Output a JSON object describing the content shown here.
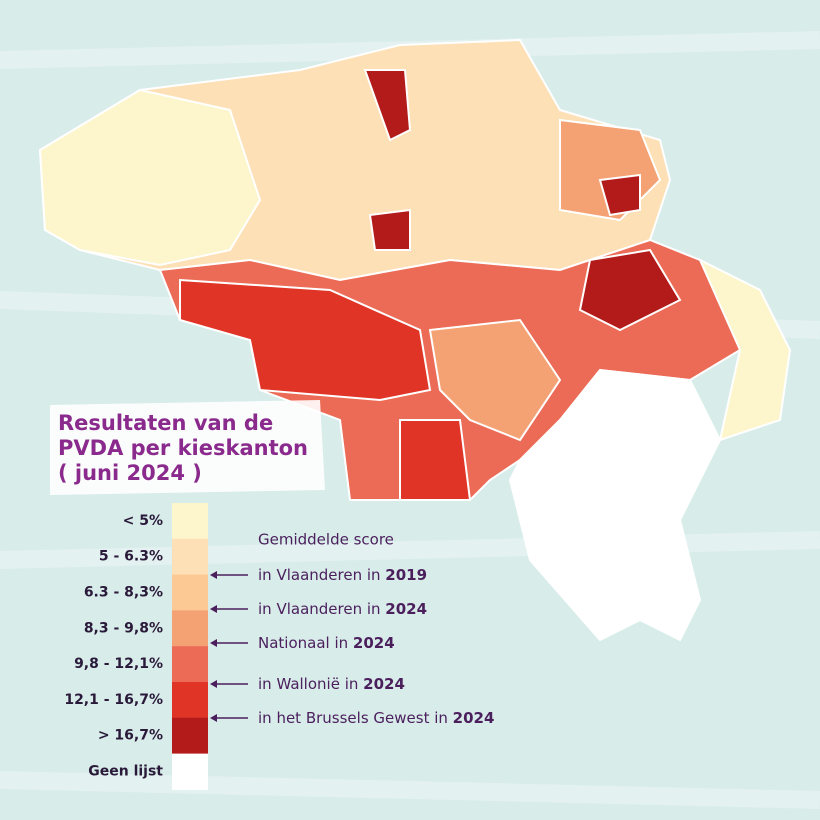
{
  "title": {
    "lines": [
      "Resultaten van de",
      "PVDA per kieskanton",
      "( juni 2024 )"
    ]
  },
  "legend": {
    "entries": [
      {
        "label": "< 5%",
        "color": "#fdf6cc"
      },
      {
        "label": "5 - 6.3%",
        "color": "#fde0b5"
      },
      {
        "label": "6.3 - 8,3%",
        "color": "#fcc893"
      },
      {
        "label": "8,3  - 9,8%",
        "color": "#f4a273"
      },
      {
        "label": "9,8 - 12,1%",
        "color": "#ec6b56"
      },
      {
        "label": "12,1 - 16,7%",
        "color": "#e03427"
      },
      {
        "label": "> 16,7%",
        "color": "#b31b1b"
      },
      {
        "label": "Geen lijst",
        "color": "#ffffff"
      }
    ]
  },
  "annotations": {
    "heading": "Gemiddelde score",
    "items": [
      {
        "text": "in Vlaanderen in ",
        "year": "2019"
      },
      {
        "text": "in Vlaanderen in ",
        "year": "2024"
      },
      {
        "text": "Nationaal in ",
        "year": "2024"
      },
      {
        "text": "in Wallonië in ",
        "year": "2024"
      },
      {
        "text": "in het Brussels Gewest in ",
        "year": "2024"
      }
    ]
  }
}
